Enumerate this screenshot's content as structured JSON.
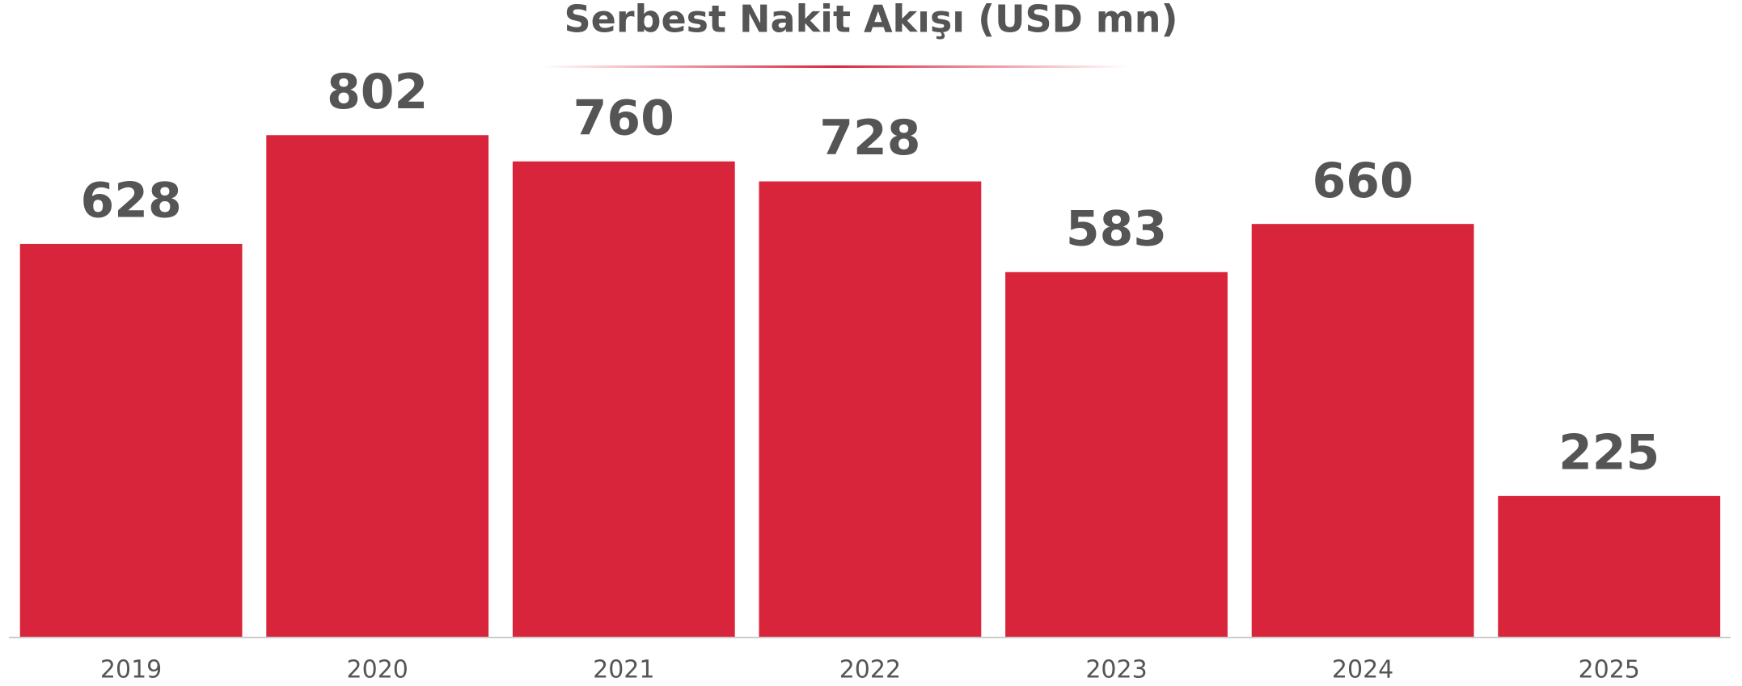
{
  "chart_data": {
    "type": "bar",
    "title": "Serbest Nakit Akışı (USD mn)",
    "categories": [
      "2019",
      "2020",
      "2021",
      "2022",
      "2023",
      "2024",
      "2025"
    ],
    "values": [
      628,
      802,
      760,
      728,
      583,
      660,
      225
    ],
    "color": "#d9253b",
    "ylim": [
      0,
      1000
    ]
  }
}
